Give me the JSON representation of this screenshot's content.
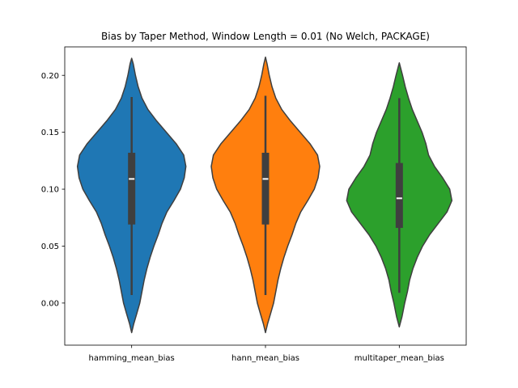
{
  "chart_data": {
    "type": "violin",
    "title": "Bias by Taper Method, Window Length = 0.01 (No Welch, PACKAGE)",
    "xlabel": "",
    "ylabel": "",
    "ylim": [
      -0.037,
      0.225
    ],
    "yticks": [
      "0.00",
      "0.05",
      "0.10",
      "0.15",
      "0.20"
    ],
    "grid": false,
    "categories": [
      "hamming_mean_bias",
      "hann_mean_bias",
      "multitaper_mean_bias"
    ],
    "series": [
      {
        "category": "hamming_mean_bias",
        "color": "#1f77b4",
        "whisker_low": 0.007,
        "q1": 0.069,
        "median": 0.109,
        "q3": 0.132,
        "whisker_high": 0.181,
        "kde_min": -0.026,
        "kde_max": 0.215,
        "density": [
          [
            -0.026,
            0.0
          ],
          [
            -0.018,
            0.04
          ],
          [
            -0.01,
            0.09
          ],
          [
            0.0,
            0.15
          ],
          [
            0.01,
            0.19
          ],
          [
            0.02,
            0.23
          ],
          [
            0.03,
            0.28
          ],
          [
            0.04,
            0.34
          ],
          [
            0.05,
            0.41
          ],
          [
            0.06,
            0.49
          ],
          [
            0.07,
            0.56
          ],
          [
            0.08,
            0.65
          ],
          [
            0.09,
            0.78
          ],
          [
            0.1,
            0.9
          ],
          [
            0.11,
            0.97
          ],
          [
            0.12,
            1.0
          ],
          [
            0.13,
            0.96
          ],
          [
            0.14,
            0.82
          ],
          [
            0.15,
            0.64
          ],
          [
            0.16,
            0.46
          ],
          [
            0.17,
            0.3
          ],
          [
            0.18,
            0.19
          ],
          [
            0.19,
            0.12
          ],
          [
            0.2,
            0.07
          ],
          [
            0.21,
            0.03
          ],
          [
            0.215,
            0.0
          ]
        ]
      },
      {
        "category": "hann_mean_bias",
        "color": "#ff7f0e",
        "whisker_low": 0.007,
        "q1": 0.069,
        "median": 0.109,
        "q3": 0.132,
        "whisker_high": 0.182,
        "kde_min": -0.026,
        "kde_max": 0.216,
        "density": [
          [
            -0.026,
            0.0
          ],
          [
            -0.018,
            0.04
          ],
          [
            -0.01,
            0.09
          ],
          [
            0.0,
            0.15
          ],
          [
            0.01,
            0.19
          ],
          [
            0.02,
            0.23
          ],
          [
            0.03,
            0.28
          ],
          [
            0.04,
            0.34
          ],
          [
            0.05,
            0.41
          ],
          [
            0.06,
            0.49
          ],
          [
            0.07,
            0.56
          ],
          [
            0.08,
            0.65
          ],
          [
            0.09,
            0.78
          ],
          [
            0.1,
            0.9
          ],
          [
            0.11,
            0.97
          ],
          [
            0.12,
            1.0
          ],
          [
            0.13,
            0.96
          ],
          [
            0.14,
            0.82
          ],
          [
            0.15,
            0.64
          ],
          [
            0.16,
            0.46
          ],
          [
            0.17,
            0.3
          ],
          [
            0.18,
            0.19
          ],
          [
            0.19,
            0.12
          ],
          [
            0.2,
            0.07
          ],
          [
            0.21,
            0.03
          ],
          [
            0.216,
            0.0
          ]
        ]
      },
      {
        "category": "multitaper_mean_bias",
        "color": "#2ca02c",
        "whisker_low": 0.009,
        "q1": 0.066,
        "median": 0.092,
        "q3": 0.123,
        "whisker_high": 0.18,
        "kde_min": -0.021,
        "kde_max": 0.211,
        "density": [
          [
            -0.021,
            0.0
          ],
          [
            -0.012,
            0.05
          ],
          [
            0.0,
            0.1
          ],
          [
            0.01,
            0.15
          ],
          [
            0.02,
            0.19
          ],
          [
            0.03,
            0.25
          ],
          [
            0.04,
            0.33
          ],
          [
            0.05,
            0.43
          ],
          [
            0.06,
            0.56
          ],
          [
            0.07,
            0.72
          ],
          [
            0.08,
            0.88
          ],
          [
            0.09,
            0.97
          ],
          [
            0.1,
            0.93
          ],
          [
            0.11,
            0.8
          ],
          [
            0.12,
            0.65
          ],
          [
            0.13,
            0.54
          ],
          [
            0.14,
            0.49
          ],
          [
            0.15,
            0.42
          ],
          [
            0.16,
            0.33
          ],
          [
            0.17,
            0.24
          ],
          [
            0.18,
            0.17
          ],
          [
            0.19,
            0.11
          ],
          [
            0.2,
            0.06
          ],
          [
            0.211,
            0.0
          ]
        ]
      }
    ]
  }
}
